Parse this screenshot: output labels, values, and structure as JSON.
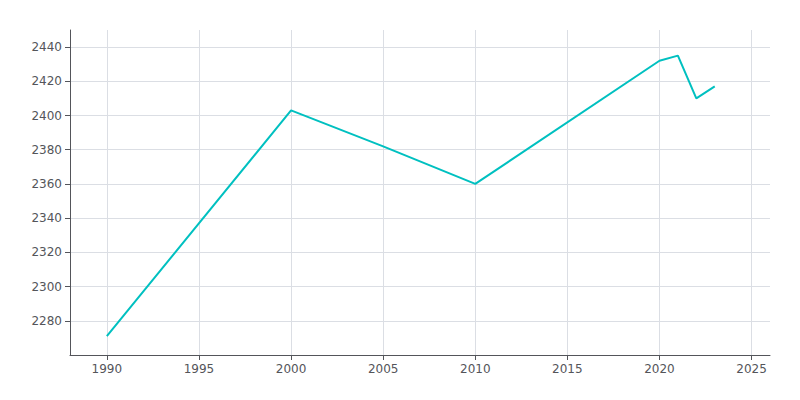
{
  "chart_data": {
    "type": "line",
    "x": [
      1990,
      2000,
      2005,
      2010,
      2020,
      2021,
      2022,
      2023
    ],
    "values": [
      2271,
      2403,
      2382,
      2360,
      2432,
      2435,
      2410,
      2417
    ],
    "color": "#00C0C0",
    "xlim": [
      1988,
      2026
    ],
    "ylim": [
      2260,
      2450
    ],
    "xticks": [
      1990,
      1995,
      2000,
      2005,
      2010,
      2015,
      2020,
      2025
    ],
    "yticks": [
      2280,
      2300,
      2320,
      2340,
      2360,
      2380,
      2400,
      2420,
      2440
    ],
    "grid": true
  }
}
